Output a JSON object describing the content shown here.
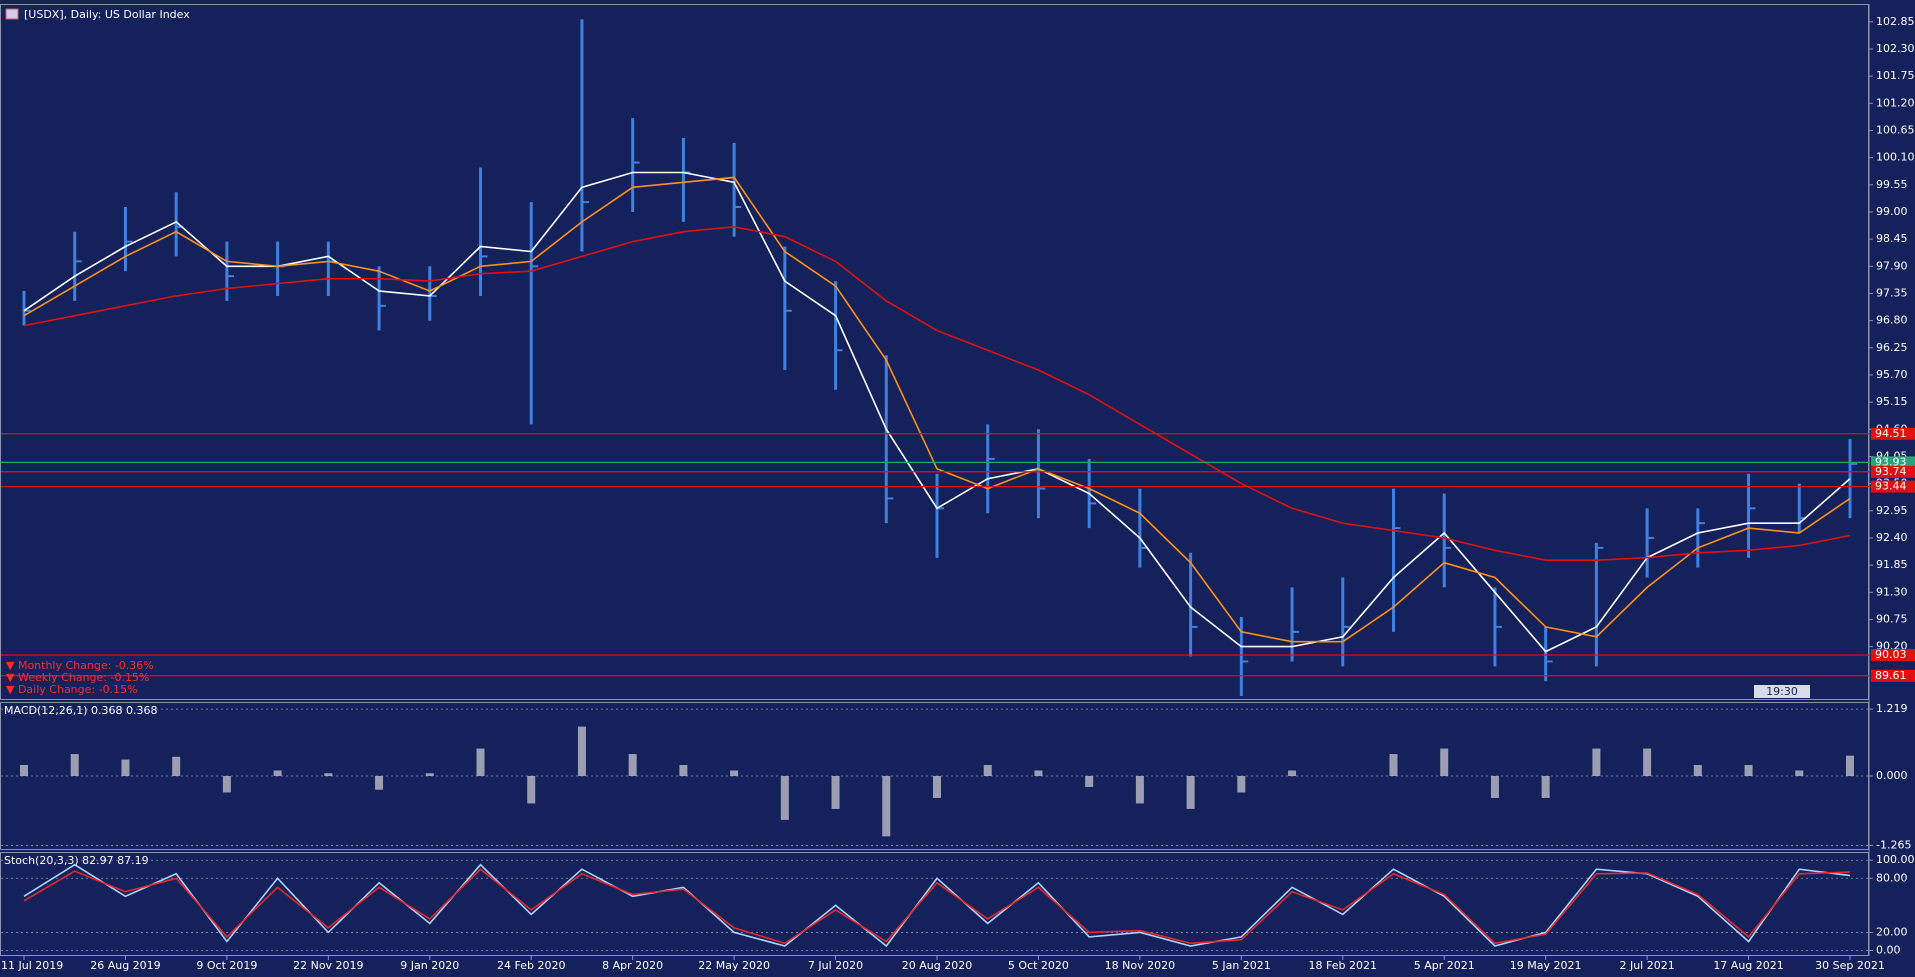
{
  "chart_data": [
    {
      "type": "hlc",
      "title": "[USDX], Daily:  US Dollar Index",
      "categories": [
        "11 Jul 2019",
        null,
        "26 Aug 2019",
        null,
        "9 Oct 2019",
        null,
        "22 Nov 2019",
        null,
        "9 Jan 2020",
        null,
        "24 Feb 2020",
        null,
        "8 Apr 2020",
        null,
        "22 May 2020",
        null,
        "7 Jul 2020",
        null,
        "20 Aug 2020",
        null,
        "5 Oct 2020",
        null,
        "18 Nov 2020",
        null,
        "5 Jan 2021",
        null,
        "18 Feb 2021",
        null,
        "5 Apr 2021",
        null,
        "19 May 2021",
        null,
        "2 Jul 2021",
        null,
        "17 Aug 2021",
        null,
        "30 Sep 2021"
      ],
      "high": [
        97.4,
        98.6,
        99.1,
        99.4,
        98.4,
        98.4,
        98.4,
        97.9,
        97.9,
        99.9,
        99.2,
        102.9,
        100.9,
        100.5,
        100.4,
        98.3,
        97.6,
        96.1,
        93.7,
        94.7,
        94.6,
        94.0,
        93.4,
        92.1,
        90.8,
        91.4,
        91.6,
        93.4,
        93.3,
        91.4,
        90.6,
        92.3,
        93.0,
        93.0,
        93.7,
        93.5,
        94.4
      ],
      "low": [
        96.7,
        97.2,
        97.8,
        98.1,
        97.2,
        97.3,
        97.3,
        96.6,
        96.8,
        97.3,
        94.7,
        98.2,
        99.0,
        98.8,
        98.5,
        95.8,
        95.4,
        92.7,
        92.0,
        92.9,
        92.8,
        92.6,
        91.8,
        90.0,
        89.2,
        89.9,
        89.8,
        90.5,
        91.4,
        89.8,
        89.5,
        89.8,
        91.6,
        91.8,
        92.0,
        92.5,
        92.8
      ],
      "close": [
        97.0,
        98.0,
        98.4,
        98.7,
        97.7,
        97.9,
        98.0,
        97.1,
        97.3,
        98.1,
        97.9,
        99.2,
        100.0,
        99.8,
        99.1,
        97.0,
        96.2,
        93.2,
        93.0,
        94.0,
        93.4,
        93.1,
        92.2,
        90.6,
        89.9,
        90.5,
        90.6,
        92.6,
        92.2,
        90.6,
        89.9,
        92.2,
        92.4,
        92.7,
        93.0,
        92.8,
        93.9
      ],
      "color": "#3f80e0",
      "series": [
        {
          "color": "#ffffff",
          "values": [
            97.0,
            97.7,
            98.3,
            98.8,
            97.9,
            97.9,
            98.1,
            97.4,
            97.3,
            98.3,
            98.2,
            99.5,
            99.8,
            99.8,
            99.6,
            97.6,
            96.9,
            94.6,
            93.0,
            93.6,
            93.8,
            93.3,
            92.4,
            91.0,
            90.2,
            90.2,
            90.4,
            91.6,
            92.5,
            91.3,
            90.1,
            90.6,
            92.0,
            92.5,
            92.7,
            92.7,
            93.6
          ]
        },
        {
          "color": "#ff9018",
          "values": [
            96.9,
            97.5,
            98.1,
            98.6,
            98.0,
            97.9,
            98.0,
            97.8,
            97.4,
            97.9,
            98.0,
            98.8,
            99.5,
            99.6,
            99.7,
            98.2,
            97.5,
            96.0,
            93.8,
            93.4,
            93.8,
            93.4,
            92.9,
            91.9,
            90.5,
            90.3,
            90.3,
            91.0,
            91.9,
            91.6,
            90.6,
            90.4,
            91.4,
            92.2,
            92.6,
            92.5,
            93.2
          ]
        },
        {
          "color": "#e01010",
          "values": [
            96.7,
            96.9,
            97.1,
            97.3,
            97.45,
            97.55,
            97.65,
            97.65,
            97.6,
            97.75,
            97.8,
            98.1,
            98.4,
            98.6,
            98.7,
            98.5,
            98.0,
            97.2,
            96.6,
            96.2,
            95.8,
            95.3,
            94.7,
            94.1,
            93.5,
            93.0,
            92.7,
            92.55,
            92.4,
            92.15,
            91.95,
            91.95,
            92.0,
            92.1,
            92.15,
            92.25,
            92.45
          ]
        }
      ],
      "levels": [
        {
          "value": 94.51,
          "color": "#e01010"
        },
        {
          "value": 93.93,
          "color": "#2aa37a"
        },
        {
          "value": 93.74,
          "color": "#e01010"
        },
        {
          "value": 93.44,
          "color": "#e01010"
        },
        {
          "value": 90.03,
          "color": "#e01010"
        },
        {
          "value": 89.61,
          "color": "#e01010"
        }
      ],
      "annotations": [
        "▼ Monthly Change: -0.36%",
        "▼ Weekly Change: -0.15%",
        "▼ Daily Change: -0.15%"
      ],
      "timer": "19:30",
      "ylim": [
        89.14,
        103.17
      ],
      "yticks": [
        102.85,
        {
          "value": 102.3,
          "label": "102.30"
        },
        101.75,
        {
          "value": 101.2,
          "label": "101.20"
        },
        100.65,
        {
          "value": 100.1,
          "label": "100.10"
        },
        99.55,
        {
          "value": 99,
          "label": "99.00"
        },
        98.45,
        {
          "value": 97.9,
          "label": "97.90"
        },
        97.35,
        {
          "value": 96.8,
          "label": "96.80"
        },
        96.25,
        {
          "value": 95.7,
          "label": "95.70"
        },
        95.15,
        {
          "value": 94.6,
          "label": "94.60"
        },
        94.05,
        {
          "value": 93.5,
          "label": "93.50"
        },
        92.95,
        {
          "value": 92.4,
          "label": "92.40"
        },
        91.85,
        {
          "value": 91.3,
          "label": "91.30"
        },
        90.75,
        {
          "value": 90.2,
          "label": "90.20"
        }
      ]
    },
    {
      "type": "bar",
      "title": "MACD(12,26,1) 0.368 0.368",
      "color": "#c8c8d0",
      "values": [
        0.2,
        0.4,
        0.3,
        0.35,
        -0.3,
        0.1,
        0.05,
        -0.25,
        0.05,
        0.5,
        -0.5,
        0.9,
        0.4,
        0.2,
        0.1,
        -0.8,
        -0.6,
        -1.1,
        -0.4,
        0.2,
        0.1,
        -0.2,
        -0.5,
        -0.6,
        -0.3,
        0.1,
        0.0,
        0.4,
        0.5,
        -0.4,
        -0.4,
        0.5,
        0.5,
        0.2,
        0.2,
        0.1,
        0.37
      ],
      "ylim": [
        -1.33,
        1.33
      ],
      "yticks": [
        1.219,
        {
          "value": 0,
          "label": "0.000"
        },
        -1.265
      ]
    },
    {
      "type": "line",
      "title": "Stoch(20,3,3) 82.97 87.19",
      "series": [
        {
          "color": "#a8d4ff",
          "values": [
            60,
            95,
            60,
            85,
            10,
            80,
            20,
            75,
            30,
            95,
            40,
            90,
            60,
            70,
            20,
            5,
            50,
            5,
            80,
            30,
            75,
            15,
            20,
            5,
            15,
            70,
            40,
            90,
            60,
            5,
            20,
            90,
            85,
            60,
            10,
            90,
            83
          ]
        },
        {
          "color": "#e82828",
          "values": [
            55,
            88,
            65,
            80,
            15,
            70,
            25,
            70,
            35,
            90,
            45,
            85,
            62,
            68,
            25,
            8,
            45,
            10,
            75,
            35,
            70,
            20,
            22,
            8,
            12,
            65,
            45,
            85,
            62,
            8,
            18,
            85,
            86,
            62,
            15,
            85,
            87
          ]
        }
      ],
      "ylim": [
        -5,
        108
      ],
      "yticks": [
        {
          "value": 100,
          "label": "100.00"
        },
        {
          "value": 80,
          "label": "80.00"
        },
        {
          "value": 20,
          "label": "20.00"
        },
        {
          "value": 0,
          "label": "0.00"
        }
      ]
    }
  ]
}
